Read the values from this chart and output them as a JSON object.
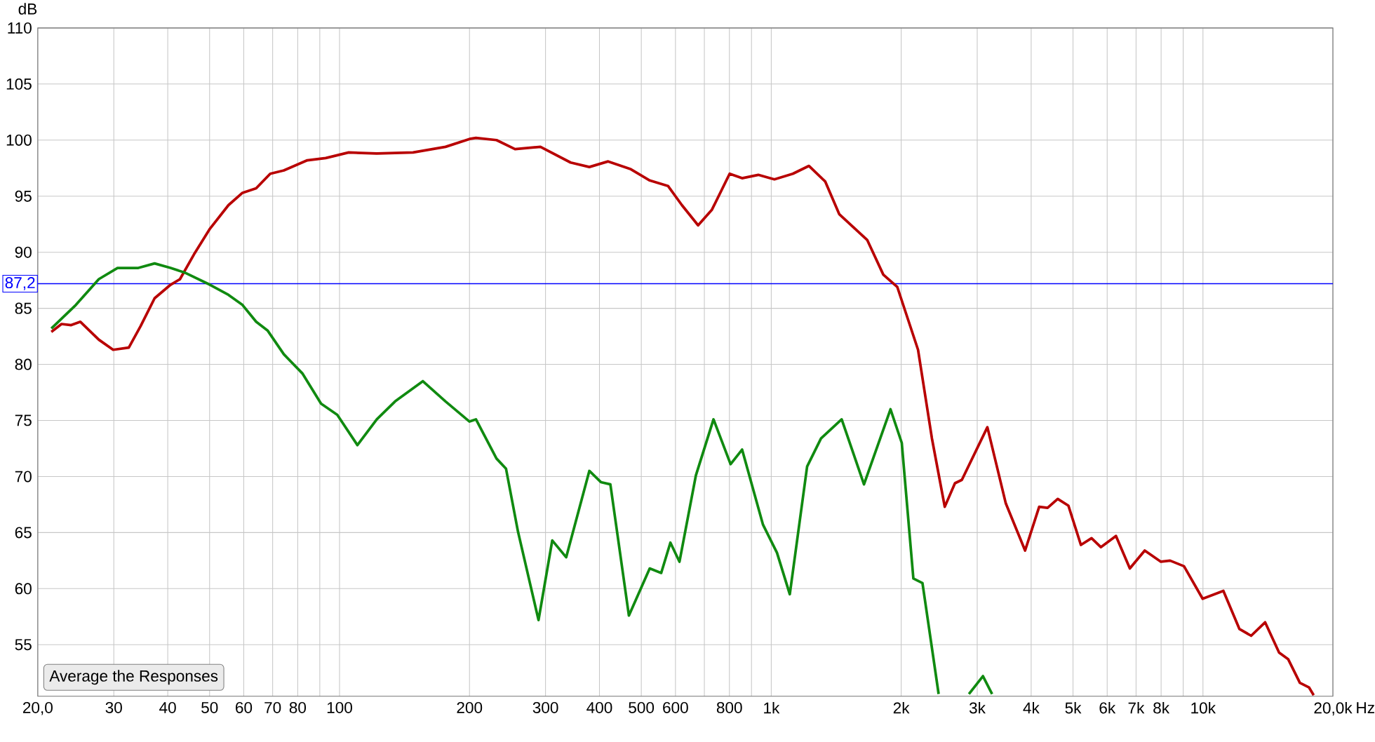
{
  "chart_data": {
    "type": "line",
    "ylabel": "dB",
    "xlabel": "Hz",
    "log": "x",
    "grid": true,
    "marker": "none",
    "line_style": "solid",
    "xlim": [
      20,
      20000
    ],
    "ylim": [
      50.4,
      110
    ],
    "xticks": [
      {
        "value": 20,
        "label": "20,0"
      },
      30,
      40,
      50,
      60,
      70,
      80,
      {
        "value": 90,
        "label": null
      },
      100,
      200,
      300,
      400,
      500,
      600,
      {
        "value": 700,
        "label": null
      },
      800,
      {
        "value": 900,
        "label": null
      },
      {
        "value": 1000,
        "label": "1k"
      },
      {
        "value": 2000,
        "label": "2k"
      },
      {
        "value": 3000,
        "label": "3k"
      },
      {
        "value": 4000,
        "label": "4k"
      },
      {
        "value": 5000,
        "label": "5k"
      },
      {
        "value": 6000,
        "label": "6k"
      },
      {
        "value": 7000,
        "label": "7k"
      },
      {
        "value": 8000,
        "label": "8k"
      },
      {
        "value": 9000,
        "label": null
      },
      {
        "value": 10000,
        "label": "10k"
      },
      {
        "value": 20000,
        "label": "20,0k"
      }
    ],
    "yticks": [
      55,
      60,
      65,
      70,
      75,
      80,
      85,
      90,
      95,
      100,
      105,
      110
    ],
    "ref_lines": [
      {
        "axis": "y",
        "value": 87.2,
        "label": "87,2",
        "color": "#0000ff"
      }
    ],
    "annotations": [
      "Average the Responses"
    ],
    "series": [
      {
        "color": "#b80000",
        "x": [
          21.5,
          22.7,
          23.9,
          25.1,
          27.7,
          29.9,
          32.5,
          34.6,
          37.3,
          40.6,
          42.7,
          46.0,
          50.1,
          55.3,
          59.6,
          64.1,
          69.1,
          74.3,
          84.2,
          92.9,
          105,
          122,
          148,
          176,
          200,
          207,
          231,
          255,
          292,
          343,
          379,
          419,
          473,
          523,
          577,
          621,
          677,
          729,
          801,
          856,
          933,
          1017,
          1122,
          1223,
          1334,
          1437,
          1668,
          1818,
          1959,
          2188,
          2356,
          2523,
          2664,
          2764,
          3167,
          3494,
          3873,
          4175,
          4366,
          4609,
          4879,
          5215,
          5520,
          5800,
          6288,
          6771,
          7331,
          7992,
          8393,
          9039,
          9983,
          11150,
          12150,
          12930,
          13930,
          15010,
          15760,
          16770,
          17600,
          18050
        ],
        "values": [
          82.9,
          83.6,
          83.5,
          83.8,
          82.2,
          81.3,
          81.5,
          83.4,
          85.9,
          87.1,
          87.6,
          89.8,
          92.1,
          94.2,
          95.3,
          95.7,
          97.0,
          97.3,
          98.2,
          98.4,
          98.9,
          98.8,
          98.9,
          99.4,
          100.1,
          100.2,
          100.0,
          99.2,
          99.4,
          98.0,
          97.6,
          98.1,
          97.4,
          96.4,
          95.9,
          94.2,
          92.4,
          93.8,
          97.0,
          96.6,
          96.9,
          96.5,
          97.0,
          97.7,
          96.3,
          93.4,
          91.1,
          88.0,
          86.9,
          81.3,
          73.4,
          67.3,
          69.4,
          69.7,
          74.4,
          67.6,
          63.4,
          67.3,
          67.2,
          68.0,
          67.4,
          63.9,
          64.5,
          63.7,
          64.7,
          61.8,
          63.4,
          62.4,
          62.5,
          62.0,
          59.1,
          59.8,
          56.4,
          55.8,
          57.0,
          54.3,
          53.7,
          51.6,
          51.2,
          50.5
        ]
      },
      {
        "color": "#108a10",
        "x": [
          21.5,
          24.5,
          27.7,
          30.6,
          34.2,
          37.3,
          40.6,
          43.7,
          50.1,
          55.3,
          59.6,
          64.1,
          68.2,
          74.3,
          82.0,
          90.6,
          98.8,
          110,
          122,
          134.5,
          156,
          176,
          200,
          207,
          231,
          243,
          259,
          289,
          311,
          335,
          379,
          403,
          424,
          468,
          523,
          556,
          584,
          613,
          669,
          735,
          805,
          856,
          957,
          1031,
          1104,
          1211,
          1304,
          1456,
          1640,
          1889,
          2006,
          2134,
          2240,
          2442,
          2600,
          2870,
          3093,
          3248
        ],
        "values": [
          83.2,
          85.3,
          87.6,
          88.6,
          88.6,
          89.0,
          88.6,
          88.2,
          87.1,
          86.2,
          85.3,
          83.8,
          83.0,
          80.9,
          79.2,
          76.5,
          75.5,
          72.8,
          75.1,
          76.7,
          78.5,
          76.7,
          74.9,
          75.1,
          71.6,
          70.7,
          65.1,
          57.2,
          64.3,
          62.8,
          70.5,
          69.5,
          69.3,
          57.6,
          61.8,
          61.4,
          64.1,
          62.4,
          70.1,
          75.1,
          71.1,
          72.4,
          65.7,
          63.2,
          59.5,
          70.9,
          73.4,
          75.1,
          69.3,
          76.0,
          73.0,
          60.9,
          60.5,
          50.6,
          null,
          50.6,
          52.2,
          50.6
        ]
      }
    ]
  }
}
